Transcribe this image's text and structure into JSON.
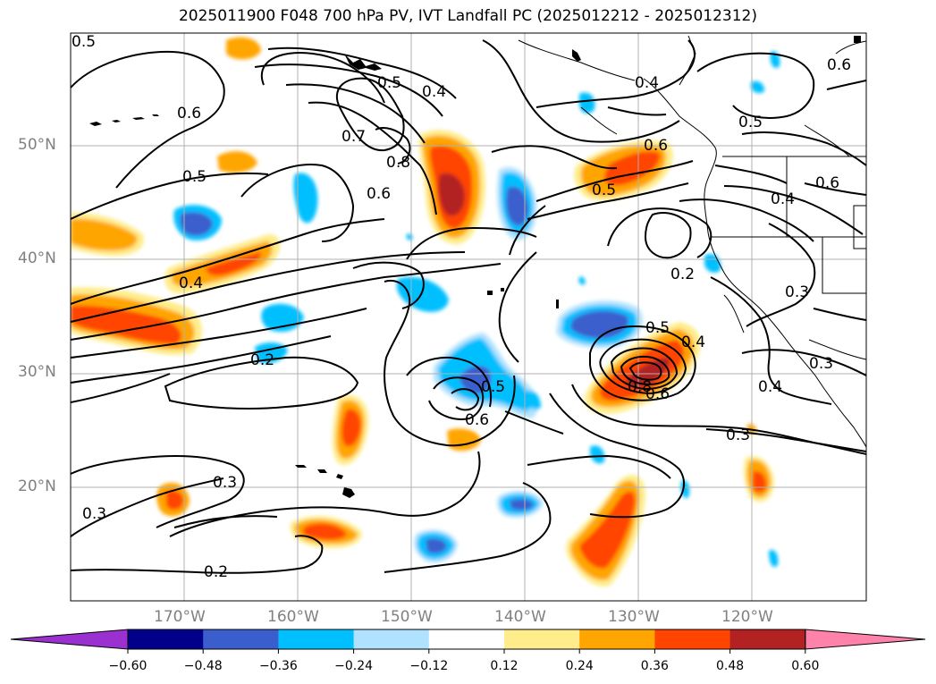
{
  "title": "2025011900 F048 700 hPa PV, IVT Landfall PC (2025012212 - 2025012312)",
  "map": {
    "lat_labels": [
      "50°N",
      "40°N",
      "30°N",
      "20°N"
    ],
    "lon_labels": [
      "170°W",
      "160°W",
      "150°W",
      "140°W",
      "130°W",
      "120°W"
    ]
  },
  "contour_labels": [
    {
      "t": "0.5"
    },
    {
      "t": "0.4"
    },
    {
      "t": "0.7"
    },
    {
      "t": "0.8"
    },
    {
      "t": "0.6"
    },
    {
      "t": "0.5"
    },
    {
      "t": "0.6"
    },
    {
      "t": "0.4"
    },
    {
      "t": "0.2"
    },
    {
      "t": "0.3"
    },
    {
      "t": "0.3"
    },
    {
      "t": "0.2"
    },
    {
      "t": "0.5"
    },
    {
      "t": "0.6"
    },
    {
      "t": "0.5"
    },
    {
      "t": "0.5"
    },
    {
      "t": "0.4"
    },
    {
      "t": "0.6"
    },
    {
      "t": "0.2"
    },
    {
      "t": "0.3"
    },
    {
      "t": "0.5"
    },
    {
      "t": "0.4"
    },
    {
      "t": "0.8"
    },
    {
      "t": "0.6"
    },
    {
      "t": "0.3"
    },
    {
      "t": "0.4"
    },
    {
      "t": "0.3"
    },
    {
      "t": "0.6"
    },
    {
      "t": "0.5"
    },
    {
      "t": "0.6"
    },
    {
      "t": "0.4"
    }
  ],
  "colorbar": {
    "colors": [
      "#9b30d0",
      "#00008b",
      "#3a5fcd",
      "#00bfff",
      "#b0e2ff",
      "#ffffff",
      "#ffec8b",
      "#ffa500",
      "#ff4500",
      "#b22222",
      "#ff82ab"
    ],
    "ticks": [
      "−0.60",
      "−0.48",
      "−0.36",
      "−0.24",
      "−0.12",
      "0.12",
      "0.24",
      "0.36",
      "0.48",
      "0.60"
    ]
  }
}
